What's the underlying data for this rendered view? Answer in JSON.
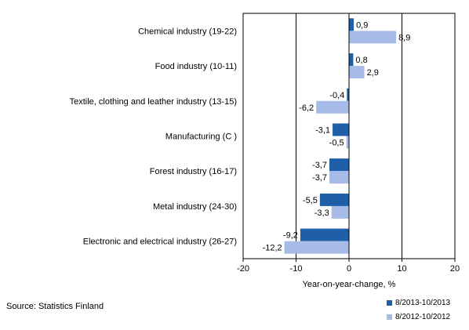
{
  "chart_data": {
    "type": "bar",
    "orientation": "horizontal",
    "categories": [
      "Chemical industry (19-22)",
      "Food industry (10-11)",
      "Textile, clothing and leather industry (13-15)",
      "Manufacturing (C )",
      "Forest industry (16-17)",
      "Metal industry (24-30)",
      "Electronic and electrical industry (26-27)"
    ],
    "series": [
      {
        "name": "8/2013-10/2013",
        "color": "#1f5fa8",
        "values": [
          0.9,
          0.8,
          -0.4,
          -3.1,
          -3.7,
          -5.5,
          -9.2
        ],
        "labels": [
          "0,9",
          "0,8",
          "-0,4",
          "-3,1",
          "-3,7",
          "-5,5",
          "-9,2"
        ]
      },
      {
        "name": "8/2012-10/2012",
        "color": "#a6bbe8",
        "values": [
          8.9,
          2.9,
          -6.2,
          -0.5,
          -3.7,
          -3.3,
          -12.2
        ],
        "labels": [
          "8,9",
          "2,9",
          "-6,2",
          "-0,5",
          "-3,7",
          "-3,3",
          "-12,2"
        ]
      }
    ],
    "xlim": [
      -20,
      20
    ],
    "xticks": [
      -20,
      -10,
      0,
      10,
      20
    ],
    "xtick_labels": [
      "-20",
      "-10",
      "0",
      "10",
      "20"
    ],
    "xlabel": "Year-on-year-change, %",
    "gridlines_at": [
      -10,
      10
    ],
    "legend_position": "bottom-right"
  },
  "source": "Source: Statistics Finland"
}
